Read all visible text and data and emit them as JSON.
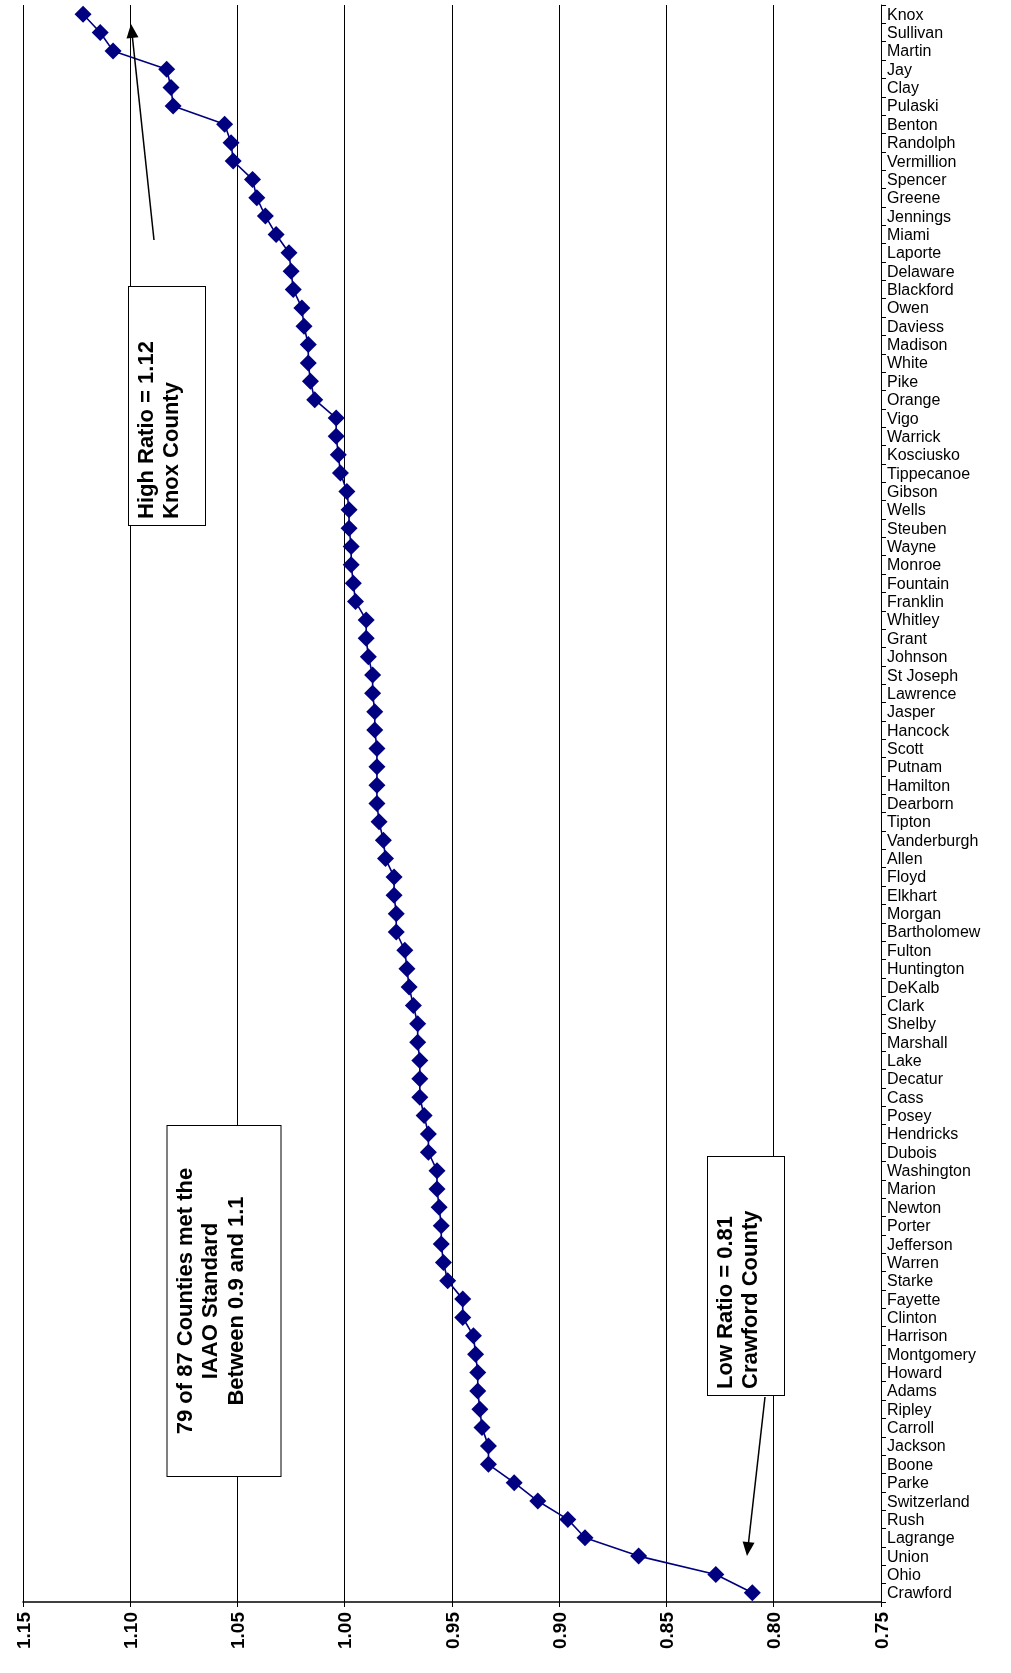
{
  "chart_data": {
    "type": "line",
    "orientation": "horizontal",
    "categories": [
      "Knox",
      "Sullivan",
      "Martin",
      "Jay",
      "Clay",
      "Pulaski",
      "Benton",
      "Randolph",
      "Vermillion",
      "Spencer",
      "Greene",
      "Jennings",
      "Miami",
      "Laporte",
      "Delaware",
      "Blackford",
      "Owen",
      "Daviess",
      "Madison",
      "White",
      "Pike",
      "Orange",
      "Vigo",
      "Warrick",
      "Kosciusko",
      "Tippecanoe",
      "Gibson",
      "Wells",
      "Steuben",
      "Wayne",
      "Monroe",
      "Fountain",
      "Franklin",
      "Whitley",
      "Grant",
      "Johnson",
      "St Joseph",
      "Lawrence",
      "Jasper",
      "Hancock",
      "Scott",
      "Putnam",
      "Hamilton",
      "Dearborn",
      "Tipton",
      "Vanderburgh",
      "Allen",
      "Floyd",
      "Elkhart",
      "Morgan",
      "Bartholomew",
      "Fulton",
      "Huntington",
      "DeKalb",
      "Clark",
      "Shelby",
      "Marshall",
      "Lake",
      "Decatur",
      "Cass",
      "Posey",
      "Hendricks",
      "Dubois",
      "Washington",
      "Marion",
      "Newton",
      "Porter",
      "Jefferson",
      "Warren",
      "Starke",
      "Fayette",
      "Clinton",
      "Harrison",
      "Montgomery",
      "Howard",
      "Adams",
      "Ripley",
      "Carroll",
      "Jackson",
      "Boone",
      "Parke",
      "Switzerland",
      "Rush",
      "Lagrange",
      "Union",
      "Ohio",
      "Crawford"
    ],
    "series": [
      {
        "color": "#000080",
        "values": [
          1.122,
          1.114,
          1.108,
          1.083,
          1.081,
          1.08,
          1.056,
          1.053,
          1.052,
          1.043,
          1.041,
          1.037,
          1.032,
          1.026,
          1.025,
          1.024,
          1.02,
          1.019,
          1.017,
          1.017,
          1.016,
          1.014,
          1.004,
          1.004,
          1.003,
          1.002,
          0.999,
          0.998,
          0.998,
          0.997,
          0.997,
          0.996,
          0.995,
          0.99,
          0.99,
          0.989,
          0.987,
          0.987,
          0.986,
          0.986,
          0.985,
          0.985,
          0.985,
          0.985,
          0.984,
          0.982,
          0.981,
          0.977,
          0.977,
          0.976,
          0.976,
          0.972,
          0.971,
          0.97,
          0.968,
          0.966,
          0.966,
          0.965,
          0.965,
          0.965,
          0.963,
          0.961,
          0.961,
          0.957,
          0.957,
          0.956,
          0.955,
          0.955,
          0.954,
          0.952,
          0.945,
          0.945,
          0.94,
          0.939,
          0.938,
          0.938,
          0.937,
          0.936,
          0.933,
          0.933,
          0.921,
          0.91,
          0.896,
          0.888,
          0.863,
          0.827,
          0.81
        ]
      }
    ],
    "xlim": [
      1.15,
      0.75
    ],
    "xticks": [
      1.15,
      {
        "value": 1.1,
        "label": "1.10"
      },
      1.05,
      {
        "value": 1.0,
        "label": "1.00"
      },
      0.95,
      {
        "value": 0.9,
        "label": "0.90"
      },
      0.85,
      {
        "value": 0.8,
        "label": "0.80"
      },
      0.75
    ],
    "grid": "x",
    "marker": "diamond",
    "line_style": "solid",
    "annotations": [
      "High Ratio = 1.12\nKnox County",
      "79 of 87 Counties met the\nIAAO Standard\nBetween 0.9 and 1.1",
      "Low Ratio = 0.81\nCrawford County"
    ]
  }
}
